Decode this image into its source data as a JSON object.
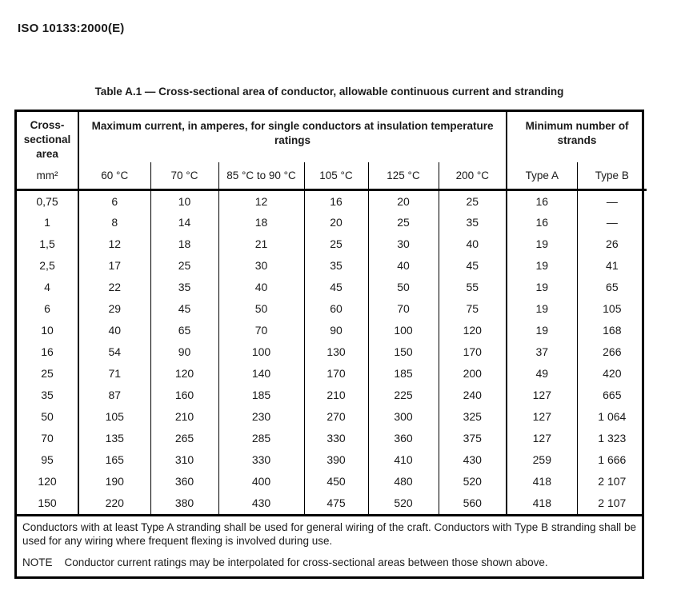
{
  "doc": {
    "reference": "ISO 10133:2000(E)"
  },
  "table": {
    "title": "Table A.1 — Cross-sectional area of conductor, allowable continuous current and stranding",
    "header": {
      "col1_title": "Cross-sectional area",
      "group_current": "Maximum current, in amperes, for single conductors at insulation temperature ratings",
      "group_strands": "Minimum number of strands",
      "units": [
        "mm²",
        "60 °C",
        "70 °C",
        "85 °C to 90 °C",
        "105 °C",
        "125 °C",
        "200 °C",
        "Type A",
        "Type B"
      ]
    },
    "rows": [
      [
        "0,75",
        "6",
        "10",
        "12",
        "16",
        "20",
        "25",
        "16",
        "—"
      ],
      [
        "1",
        "8",
        "14",
        "18",
        "20",
        "25",
        "35",
        "16",
        "—"
      ],
      [
        "1,5",
        "12",
        "18",
        "21",
        "25",
        "30",
        "40",
        "19",
        "26"
      ],
      [
        "2,5",
        "17",
        "25",
        "30",
        "35",
        "40",
        "45",
        "19",
        "41"
      ],
      [
        "4",
        "22",
        "35",
        "40",
        "45",
        "50",
        "55",
        "19",
        "65"
      ],
      [
        "6",
        "29",
        "45",
        "50",
        "60",
        "70",
        "75",
        "19",
        "105"
      ],
      [
        "10",
        "40",
        "65",
        "70",
        "90",
        "100",
        "120",
        "19",
        "168"
      ],
      [
        "16",
        "54",
        "90",
        "100",
        "130",
        "150",
        "170",
        "37",
        "266"
      ],
      [
        "25",
        "71",
        "120",
        "140",
        "170",
        "185",
        "200",
        "49",
        "420"
      ],
      [
        "35",
        "87",
        "160",
        "185",
        "210",
        "225",
        "240",
        "127",
        "665"
      ],
      [
        "50",
        "105",
        "210",
        "230",
        "270",
        "300",
        "325",
        "127",
        "1 064"
      ],
      [
        "70",
        "135",
        "265",
        "285",
        "330",
        "360",
        "375",
        "127",
        "1 323"
      ],
      [
        "95",
        "165",
        "310",
        "330",
        "390",
        "410",
        "430",
        "259",
        "1 666"
      ],
      [
        "120",
        "190",
        "360",
        "400",
        "450",
        "480",
        "520",
        "418",
        "2 107"
      ],
      [
        "150",
        "220",
        "380",
        "430",
        "475",
        "520",
        "560",
        "418",
        "2 107"
      ]
    ],
    "notes": {
      "paragraph": "Conductors with at least Type A stranding shall be used for general wiring of the craft. Conductors with Type B stranding shall be used for any wiring where frequent flexing is involved during use.",
      "note_label": "NOTE",
      "note_text": "Conductor current ratings may be interpolated for cross-sectional areas between those shown above."
    }
  }
}
